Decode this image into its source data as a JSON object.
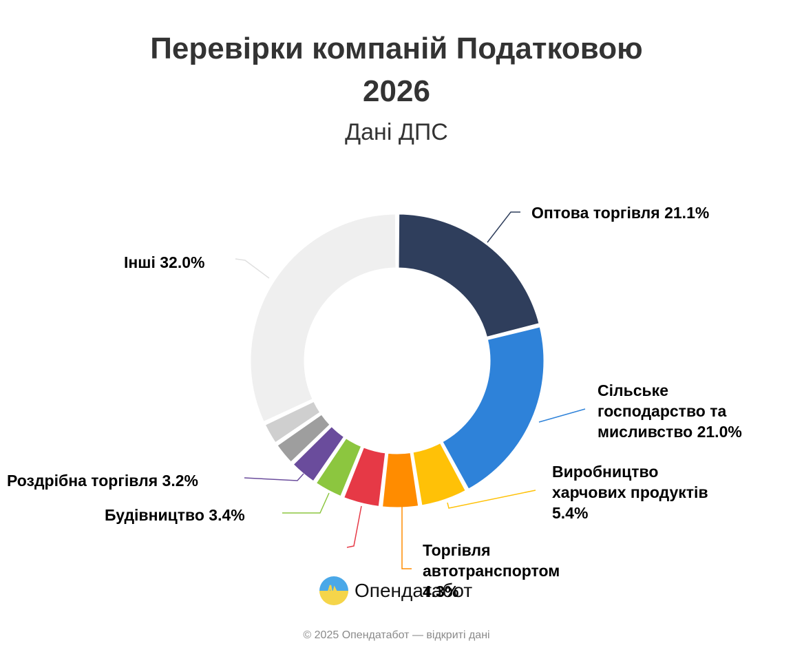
{
  "header": {
    "title_line1": "Перевірки компаній Податковою",
    "title_line2": "2026",
    "subtitle": "Дані ДПС"
  },
  "labels": {
    "wholesale": "Оптова торгівля 21.1%",
    "agri_line1": "Сільське",
    "agri_line2": "господарство та",
    "agri_line3": "мисливство 21.0%",
    "food_line1": "Виробництво",
    "food_line2": "харчових продуктів",
    "food_line3": "5.4%",
    "auto_line1": "Торгівля",
    "auto_line2": "автотранспортом",
    "auto_line3": "4.3%",
    "construction": "Будівництво 3.4%",
    "retail": "Роздрібна торгівля 3.2%",
    "other": "Інші 32.0%"
  },
  "brand": {
    "logo_text": "Опендатабот"
  },
  "footer": {
    "text": "© 2025 Опендатабот — відкриті дані"
  },
  "chart_data": {
    "type": "pie",
    "variant": "donut",
    "title": "Перевірки компаній Податковою 2026",
    "subtitle": "Дані ДПС",
    "categories": [
      "Оптова торгівля",
      "Сільське господарство та мисливство",
      "Виробництво харчових продуктів",
      "Торгівля автотранспортом",
      "(unlabeled red segment)",
      "Будівництво",
      "Роздрібна торгівля",
      "(unlabeled dark grey segment)",
      "(unlabeled light grey segment)",
      "Інші"
    ],
    "values": [
      21.1,
      21.0,
      5.4,
      4.3,
      4.3,
      3.4,
      3.2,
      2.7,
      2.6,
      32.0
    ],
    "labeled_values_note": "Red and two grey segments have no visible labels; values estimated from arc size",
    "colors": [
      "#2f3e5c",
      "#2e82d9",
      "#ffc107",
      "#ff8c00",
      "#e63946",
      "#8cc63f",
      "#6a4c9c",
      "#9e9e9e",
      "#cfcfcf",
      "#efefef"
    ],
    "legend_position": "callout labels"
  }
}
